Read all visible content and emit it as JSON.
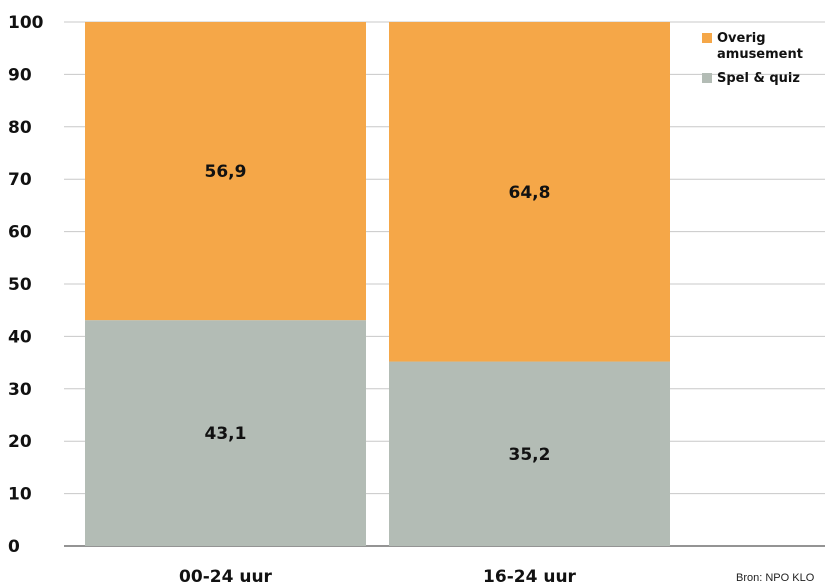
{
  "chart_data": {
    "type": "bar",
    "stacked": true,
    "categories": [
      "00-24 uur",
      "16-24 uur"
    ],
    "series": [
      {
        "name": "Spel & quiz",
        "values": [
          43.1,
          35.2
        ],
        "labels": [
          "43,1",
          "35,2"
        ],
        "color": "#b3bcb5"
      },
      {
        "name": "Overig amusement",
        "name_lines": [
          "Overig",
          "amusement"
        ],
        "values": [
          56.9,
          64.8
        ],
        "labels": [
          "56,9",
          "64,8"
        ],
        "color": "#f5a748"
      }
    ],
    "yticks": [
      "0",
      "10",
      "20",
      "30",
      "40",
      "50",
      "60",
      "70",
      "80",
      "90",
      "100"
    ],
    "ylim": [
      0,
      100
    ],
    "grid": true,
    "legend_position": "top-right",
    "gridline_color": "#c8c8c8"
  },
  "source": "Bron: NPO KLO"
}
